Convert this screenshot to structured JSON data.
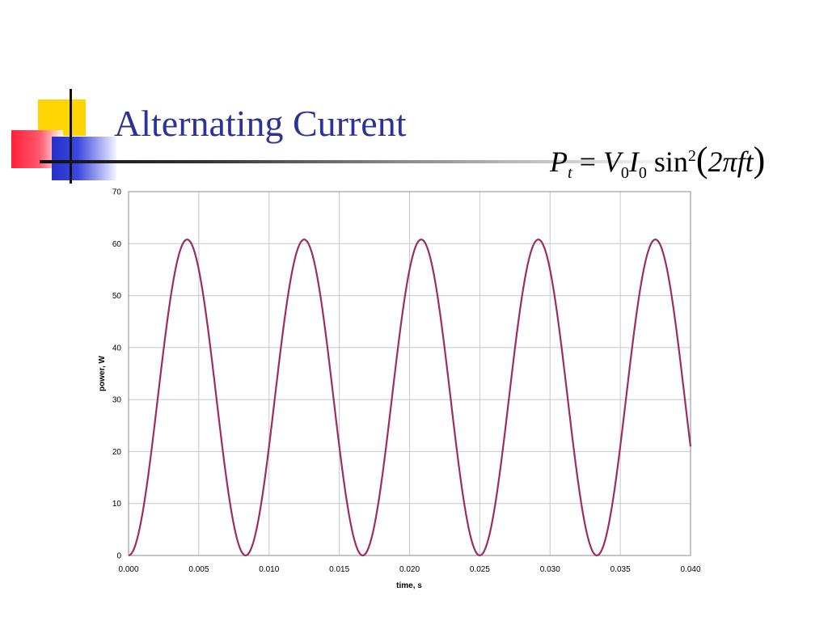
{
  "slide": {
    "title": "Alternating Current"
  },
  "formula": {
    "lhs": "P",
    "lhs_sub": "t",
    "eq": "=",
    "v": "V",
    "v_sub": "0",
    "i": "I",
    "i_sub": "0",
    "fn": "sin",
    "fn_sup": "2",
    "arg": "2πft"
  },
  "colors": {
    "title": "#2d3295",
    "line": "#9b2d63",
    "grid": "#c8c8c8"
  },
  "chart_data": {
    "type": "line",
    "xlabel": "time, s",
    "ylabel": "power, W",
    "xlim": [
      0,
      0.04
    ],
    "ylim": [
      0,
      70
    ],
    "xticks": [
      "0.000",
      "0.005",
      "0.010",
      "0.015",
      "0.020",
      "0.025",
      "0.030",
      "0.035",
      "0.040"
    ],
    "yticks": [
      "0",
      "10",
      "20",
      "30",
      "40",
      "50",
      "60",
      "70"
    ],
    "grid": true,
    "series": [
      {
        "x": [
          0.0,
          0.0021,
          0.0042,
          0.0063,
          0.0083,
          0.0104,
          0.0125,
          0.0146,
          0.0167,
          0.0188,
          0.0208,
          0.0229,
          0.025,
          0.0271,
          0.0292,
          0.0313,
          0.0333,
          0.0354,
          0.0375,
          0.0396,
          0.04
        ],
        "y": [
          0,
          30.4,
          60.8,
          30.4,
          0,
          30.4,
          60.8,
          30.4,
          0,
          30.4,
          60.8,
          30.4,
          0,
          30.4,
          60.8,
          30.4,
          0,
          30.4,
          60.8,
          30.4,
          20
        ]
      }
    ]
  }
}
